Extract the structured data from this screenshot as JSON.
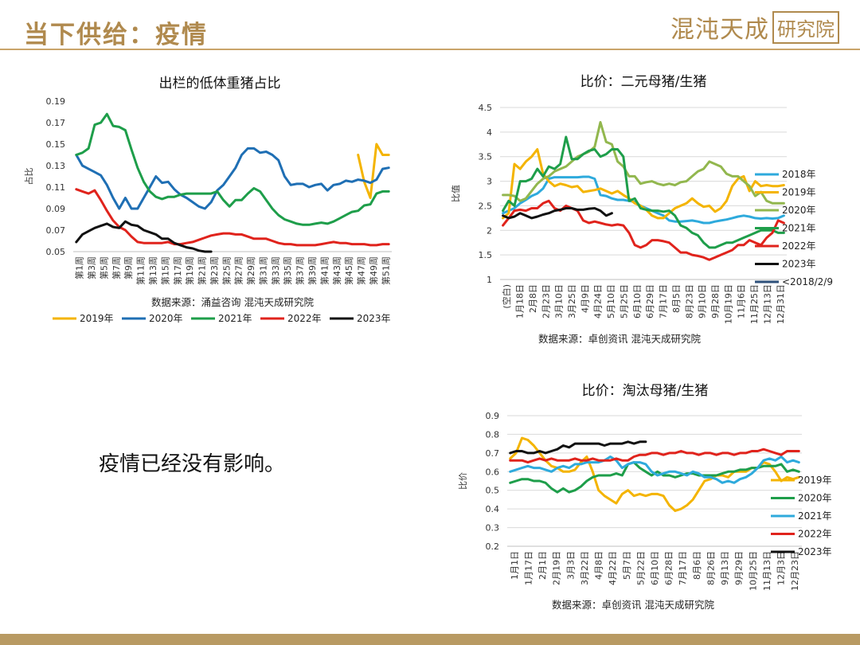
{
  "header": {
    "title": "当下供给：疫情",
    "logo_main": "混沌天成",
    "logo_box": "研究院"
  },
  "body_text": "疫情已经没有影响。",
  "chart_data": [
    {
      "type": "line",
      "title": "出栏的低体重猪占比",
      "ylabel": "占比",
      "xlabel": "",
      "ylim": [
        0.05,
        0.19
      ],
      "yticks": [
        0.05,
        0.07,
        0.09,
        0.11,
        0.13,
        0.15,
        0.17,
        0.19
      ],
      "ytick_labels": [
        "0.05",
        "0.07",
        "0.09",
        "0.11",
        "0.13",
        "0.15",
        "0.17",
        "0.19"
      ],
      "xcount": 52,
      "xtick_labels": [
        "第1周",
        "第3周",
        "第5周",
        "第7周",
        "第9周",
        "第11周",
        "第13周",
        "第15周",
        "第17周",
        "第19周",
        "第21周",
        "第23周",
        "第25周",
        "第27周",
        "第29周",
        "第31周",
        "第33周",
        "第35周",
        "第37周",
        "第39周",
        "第41周",
        "第43周",
        "第45周",
        "第47周",
        "第49周",
        "第51周"
      ],
      "source": "数据来源：涌益咨询 混沌天成研究院",
      "legend_position": "bottom",
      "series": [
        {
          "name": "2019年",
          "color": "#f4b400",
          "start": 47,
          "values": [
            0.14,
            0.115,
            0.1,
            0.15,
            0.14,
            0.14
          ]
        },
        {
          "name": "2020年",
          "color": "#1f6fb4",
          "start": 1,
          "values": [
            0.14,
            0.13,
            0.127,
            0.124,
            0.121,
            0.112,
            0.1,
            0.09,
            0.1,
            0.09,
            0.09,
            0.1,
            0.11,
            0.12,
            0.114,
            0.115,
            0.108,
            0.103,
            0.1,
            0.096,
            0.092,
            0.09,
            0.096,
            0.107,
            0.112,
            0.12,
            0.128,
            0.14,
            0.146,
            0.146,
            0.142,
            0.143,
            0.14,
            0.135,
            0.12,
            0.112,
            0.113,
            0.113,
            0.11,
            0.112,
            0.113,
            0.107,
            0.112,
            0.113,
            0.116,
            0.115,
            0.117,
            0.116,
            0.114,
            0.117,
            0.127,
            0.128
          ]
        },
        {
          "name": "2021年",
          "color": "#1e9e4a",
          "start": 1,
          "values": [
            0.14,
            0.142,
            0.146,
            0.168,
            0.17,
            0.178,
            0.167,
            0.166,
            0.163,
            0.145,
            0.128,
            0.115,
            0.106,
            0.101,
            0.099,
            0.101,
            0.101,
            0.103,
            0.104,
            0.104,
            0.104,
            0.104,
            0.104,
            0.106,
            0.098,
            0.092,
            0.098,
            0.098,
            0.104,
            0.109,
            0.106,
            0.098,
            0.09,
            0.084,
            0.08,
            0.078,
            0.076,
            0.075,
            0.075,
            0.076,
            0.077,
            0.076,
            0.078,
            0.081,
            0.084,
            0.087,
            0.088,
            0.093,
            0.094,
            0.104,
            0.106,
            0.106
          ]
        },
        {
          "name": "2022年",
          "color": "#e0231c",
          "start": 1,
          "values": [
            0.108,
            0.106,
            0.104,
            0.107,
            0.098,
            0.088,
            0.079,
            0.073,
            0.07,
            0.064,
            0.059,
            0.058,
            0.058,
            0.058,
            0.058,
            0.059,
            0.057,
            0.057,
            0.058,
            0.059,
            0.061,
            0.063,
            0.065,
            0.066,
            0.067,
            0.067,
            0.066,
            0.066,
            0.064,
            0.062,
            0.062,
            0.062,
            0.06,
            0.058,
            0.057,
            0.057,
            0.056,
            0.056,
            0.056,
            0.056,
            0.057,
            0.058,
            0.059,
            0.058,
            0.058,
            0.057,
            0.057,
            0.057,
            0.056,
            0.056,
            0.057,
            0.057
          ]
        },
        {
          "name": "2023年",
          "color": "#111111",
          "start": 1,
          "values": [
            0.059,
            0.066,
            0.069,
            0.072,
            0.074,
            0.076,
            0.073,
            0.072,
            0.078,
            0.075,
            0.074,
            0.07,
            0.068,
            0.066,
            0.062,
            0.062,
            0.058,
            0.056,
            0.054,
            0.053,
            0.051,
            0.05,
            0.05
          ]
        }
      ]
    },
    {
      "type": "line",
      "title": "比价：二元母猪/生猪",
      "ylabel": "比值",
      "xlabel": "",
      "ylim": [
        1,
        4.5
      ],
      "yticks": [
        1,
        1.5,
        2,
        2.5,
        3,
        3.5,
        4,
        4.5
      ],
      "ytick_labels": [
        "1",
        "1.5",
        "2",
        "2.5",
        "3",
        "3.5",
        "4",
        "4.5"
      ],
      "xcount": 50,
      "xtick_labels": [
        "(空白)",
        "1月18日",
        "2月8日",
        "2月23日",
        "3月10日",
        "3月25日",
        "4月9日",
        "4月24日",
        "5月10日",
        "5月25日",
        "6月10日",
        "6月29日",
        "7月17日",
        "8月5日",
        "8月23日",
        "9月10日",
        "9月28日",
        "10月19日",
        "11月6日",
        "11月25日",
        "12月13日",
        "12月31日"
      ],
      "source": "数据来源：卓创资讯 混沌天成研究院",
      "legend_position": "right",
      "series": [
        {
          "name": "2018年",
          "color": "#2eaadc",
          "start": 1,
          "values": [
            2.35,
            2.4,
            2.45,
            2.55,
            2.62,
            2.7,
            2.75,
            2.85,
            3.05,
            3.08,
            3.08,
            3.08,
            3.08,
            3.08,
            3.09,
            3.09,
            3.05,
            2.72,
            2.7,
            2.65,
            2.62,
            2.62,
            2.6,
            2.58,
            2.5,
            2.45,
            2.4,
            2.35,
            2.3,
            2.2,
            2.18,
            2.18,
            2.19,
            2.2,
            2.18,
            2.15,
            2.15,
            2.18,
            2.2,
            2.22,
            2.25,
            2.28,
            2.3,
            2.28,
            2.25,
            2.24,
            2.25,
            2.24,
            2.25,
            2.3
          ]
        },
        {
          "name": "2019年",
          "color": "#f4b400",
          "start": 1,
          "values": [
            2.25,
            2.35,
            3.35,
            3.25,
            3.4,
            3.5,
            3.65,
            3.15,
            3.0,
            2.9,
            2.95,
            2.92,
            2.88,
            2.9,
            2.78,
            2.8,
            2.82,
            2.85,
            2.8,
            2.75,
            2.8,
            2.72,
            2.65,
            2.55,
            2.5,
            2.42,
            2.3,
            2.25,
            2.25,
            2.35,
            2.45,
            2.5,
            2.55,
            2.65,
            2.55,
            2.48,
            2.5,
            2.38,
            2.45,
            2.6,
            2.9,
            3.05,
            3.1,
            2.8,
            3.0,
            2.9,
            2.92,
            2.9,
            2.9,
            2.92
          ]
        },
        {
          "name": "2020年",
          "color": "#92b74e",
          "start": 1,
          "values": [
            2.72,
            2.72,
            2.7,
            2.6,
            2.65,
            2.8,
            2.95,
            3.05,
            3.1,
            3.2,
            3.25,
            3.3,
            3.4,
            3.5,
            3.55,
            3.6,
            3.7,
            4.2,
            3.8,
            3.75,
            3.4,
            3.3,
            3.1,
            3.1,
            2.95,
            2.98,
            3.0,
            2.95,
            2.92,
            2.95,
            2.92,
            2.98,
            3.0,
            3.1,
            3.2,
            3.25,
            3.4,
            3.35,
            3.3,
            3.15,
            3.1,
            3.1,
            3.0,
            2.9,
            2.7,
            2.78,
            2.6,
            2.55,
            2.55,
            2.55
          ]
        },
        {
          "name": "2021年",
          "color": "#1e9e4a",
          "start": 1,
          "values": [
            2.4,
            2.6,
            2.5,
            3.0,
            3.0,
            3.05,
            3.25,
            3.1,
            3.3,
            3.25,
            3.35,
            3.9,
            3.45,
            3.45,
            3.55,
            3.62,
            3.65,
            3.5,
            3.55,
            3.65,
            3.65,
            3.5,
            2.6,
            2.65,
            2.45,
            2.42,
            2.4,
            2.4,
            2.38,
            2.4,
            2.3,
            2.1,
            2.05,
            1.95,
            1.9,
            1.75,
            1.65,
            1.65,
            1.7,
            1.75,
            1.75,
            1.8,
            1.85,
            1.9,
            1.95,
            2.0,
            2.0,
            2.0,
            1.95,
            1.95
          ]
        },
        {
          "name": "2022年",
          "color": "#e0231c",
          "start": 1,
          "values": [
            2.1,
            2.25,
            2.4,
            2.42,
            2.4,
            2.45,
            2.45,
            2.55,
            2.6,
            2.45,
            2.4,
            2.5,
            2.45,
            2.4,
            2.2,
            2.15,
            2.18,
            2.15,
            2.12,
            2.1,
            2.12,
            2.1,
            1.95,
            1.7,
            1.65,
            1.7,
            1.8,
            1.8,
            1.78,
            1.75,
            1.65,
            1.55,
            1.55,
            1.5,
            1.48,
            1.45,
            1.4,
            1.45,
            1.5,
            1.55,
            1.6,
            1.7,
            1.7,
            1.8,
            1.75,
            1.7,
            1.85,
            1.95,
            2.2,
            2.15
          ]
        },
        {
          "name": "2023年",
          "color": "#111111",
          "start": 1,
          "values": [
            2.3,
            2.25,
            2.28,
            2.35,
            2.3,
            2.25,
            2.28,
            2.32,
            2.35,
            2.4,
            2.42,
            2.45,
            2.45,
            2.42,
            2.42,
            2.44,
            2.45,
            2.4,
            2.3,
            2.35
          ]
        },
        {
          "name": "<2018/2/9",
          "color": "#2c4f7a",
          "start": 1,
          "values": []
        }
      ]
    },
    {
      "type": "line",
      "title": "比价：淘汰母猪/生猪",
      "ylabel": "比价",
      "xlabel": "",
      "ylim": [
        0.2,
        0.9
      ],
      "yticks": [
        0.2,
        0.3,
        0.4,
        0.5,
        0.6,
        0.7,
        0.8,
        0.9
      ],
      "ytick_labels": [
        "0.2",
        "0.3",
        "0.4",
        "0.5",
        "0.6",
        "0.7",
        "0.8",
        "0.9"
      ],
      "xcount": 50,
      "xtick_labels": [
        "1月1日",
        "1月17日",
        "2月1日",
        "2月19日",
        "3月3日",
        "3月22日",
        "4月8日",
        "4月22日",
        "5月7日",
        "5月22日",
        "6月10日",
        "6月28日",
        "7月17日",
        "8月6日",
        "8月26日",
        "9月13日",
        "9月29日",
        "10月25日",
        "11月13日",
        "12月3日",
        "12月23日"
      ],
      "source": "数据来源：卓创资讯 混沌天成研究院",
      "legend_position": "right",
      "series": [
        {
          "name": "2019年",
          "color": "#f4b400",
          "start": 1,
          "values": [
            0.67,
            0.7,
            0.78,
            0.77,
            0.74,
            0.7,
            0.66,
            0.63,
            0.62,
            0.6,
            0.6,
            0.61,
            0.65,
            0.68,
            0.6,
            0.5,
            0.47,
            0.45,
            0.43,
            0.48,
            0.5,
            0.47,
            0.48,
            0.47,
            0.48,
            0.48,
            0.47,
            0.42,
            0.39,
            0.4,
            0.42,
            0.45,
            0.5,
            0.55,
            0.56,
            0.58,
            0.58,
            0.57,
            0.6,
            0.6,
            0.6,
            0.62,
            0.62,
            0.65,
            0.64,
            0.6,
            0.55,
            0.57,
            0.56,
            0.57
          ]
        },
        {
          "name": "2020年",
          "color": "#1e9e4a",
          "start": 1,
          "values": [
            0.54,
            0.55,
            0.56,
            0.56,
            0.55,
            0.55,
            0.54,
            0.51,
            0.49,
            0.51,
            0.49,
            0.5,
            0.52,
            0.55,
            0.57,
            0.58,
            0.58,
            0.58,
            0.59,
            0.58,
            0.64,
            0.65,
            0.62,
            0.6,
            0.58,
            0.6,
            0.58,
            0.58,
            0.57,
            0.58,
            0.59,
            0.59,
            0.58,
            0.58,
            0.58,
            0.58,
            0.59,
            0.6,
            0.6,
            0.61,
            0.61,
            0.62,
            0.62,
            0.63,
            0.63,
            0.63,
            0.64,
            0.6,
            0.61,
            0.6
          ]
        },
        {
          "name": "2021年",
          "color": "#2eaadc",
          "start": 1,
          "values": [
            0.6,
            0.61,
            0.62,
            0.63,
            0.62,
            0.62,
            0.61,
            0.6,
            0.62,
            0.63,
            0.62,
            0.64,
            0.64,
            0.65,
            0.65,
            0.65,
            0.66,
            0.68,
            0.66,
            0.62,
            0.64,
            0.65,
            0.65,
            0.64,
            0.6,
            0.58,
            0.59,
            0.6,
            0.6,
            0.59,
            0.58,
            0.6,
            0.59,
            0.57,
            0.57,
            0.56,
            0.54,
            0.55,
            0.54,
            0.56,
            0.57,
            0.59,
            0.62,
            0.66,
            0.67,
            0.66,
            0.68,
            0.65,
            0.66,
            0.65
          ]
        },
        {
          "name": "2022年",
          "color": "#e0231c",
          "start": 1,
          "values": [
            0.66,
            0.66,
            0.66,
            0.65,
            0.66,
            0.67,
            0.66,
            0.67,
            0.66,
            0.66,
            0.66,
            0.67,
            0.66,
            0.66,
            0.67,
            0.66,
            0.66,
            0.66,
            0.67,
            0.66,
            0.66,
            0.68,
            0.69,
            0.69,
            0.7,
            0.7,
            0.69,
            0.7,
            0.7,
            0.71,
            0.7,
            0.7,
            0.69,
            0.7,
            0.7,
            0.69,
            0.7,
            0.7,
            0.69,
            0.7,
            0.7,
            0.71,
            0.71,
            0.72,
            0.71,
            0.7,
            0.69,
            0.71,
            0.71,
            0.71
          ]
        },
        {
          "name": "2023年",
          "color": "#111111",
          "start": 1,
          "values": [
            0.7,
            0.71,
            0.71,
            0.7,
            0.7,
            0.71,
            0.7,
            0.71,
            0.72,
            0.74,
            0.73,
            0.75,
            0.75,
            0.75,
            0.75,
            0.75,
            0.74,
            0.75,
            0.75,
            0.75,
            0.76,
            0.75,
            0.76,
            0.76
          ]
        }
      ]
    }
  ]
}
